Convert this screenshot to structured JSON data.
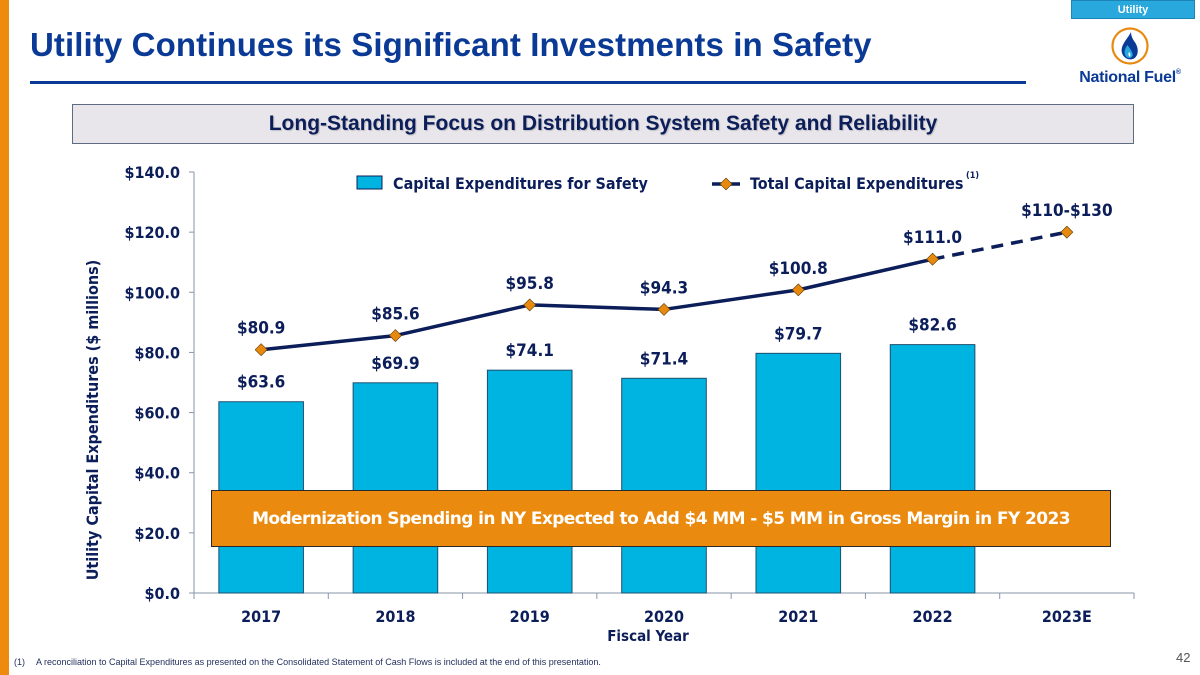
{
  "section_tab": "Utility",
  "title": "Utility Continues its Significant Investments in Safety",
  "logo": {
    "icon": "flame-drop-icon",
    "name": "National Fuel",
    "mark": "®"
  },
  "subtitle": "Long-Standing Focus on Distribution System Safety and Reliability",
  "callout": "Modernization Spending in NY Expected to Add $4 MM - $5 MM in Gross Margin in FY 2023",
  "footnote": {
    "marker": "(1)",
    "text": "A reconciliation to Capital Expenditures as presented on the Consolidated Statement of Cash Flows is included at the end of this presentation."
  },
  "page_number": "42",
  "colors": {
    "bar": "#00b4e1",
    "line": "#0c1e5a",
    "marker": "#e8890f",
    "accent_orange": "#ee8b0e",
    "title_blue": "#0a3a95"
  },
  "chart_data": {
    "type": "bar",
    "xlabel": "Fiscal Year",
    "ylabel": "Utility Capital Expenditures ($ millions)",
    "ylim": [
      0,
      140
    ],
    "yticks": [
      0,
      20,
      40,
      60,
      80,
      100,
      120,
      140
    ],
    "ytick_labels": [
      "$0.0",
      "$20.0",
      "$40.0",
      "$60.0",
      "$80.0",
      "$100.0",
      "$120.0",
      "$140.0"
    ],
    "categories": [
      "2017",
      "2018",
      "2019",
      "2020",
      "2021",
      "2022",
      "2023E"
    ],
    "legend_position": "top",
    "series": [
      {
        "name": "Capital Expenditures for Safety",
        "kind": "bar",
        "values": [
          63.6,
          69.9,
          74.1,
          71.4,
          79.7,
          82.6,
          null
        ],
        "labels": [
          "$63.6",
          "$69.9",
          "$74.1",
          "$71.4",
          "$79.7",
          "$82.6",
          ""
        ]
      },
      {
        "name": "Total Capital Expenditures",
        "legend_superscript": "(1)",
        "kind": "line",
        "values": [
          80.9,
          85.6,
          95.8,
          94.3,
          100.8,
          111.0,
          120.0
        ],
        "labels": [
          "$80.9",
          "$85.6",
          "$95.8",
          "$94.3",
          "$100.8",
          "$111.0",
          "$110-$130"
        ],
        "projected_range": [
          110,
          130
        ],
        "dashed_from_index": 5
      }
    ]
  }
}
